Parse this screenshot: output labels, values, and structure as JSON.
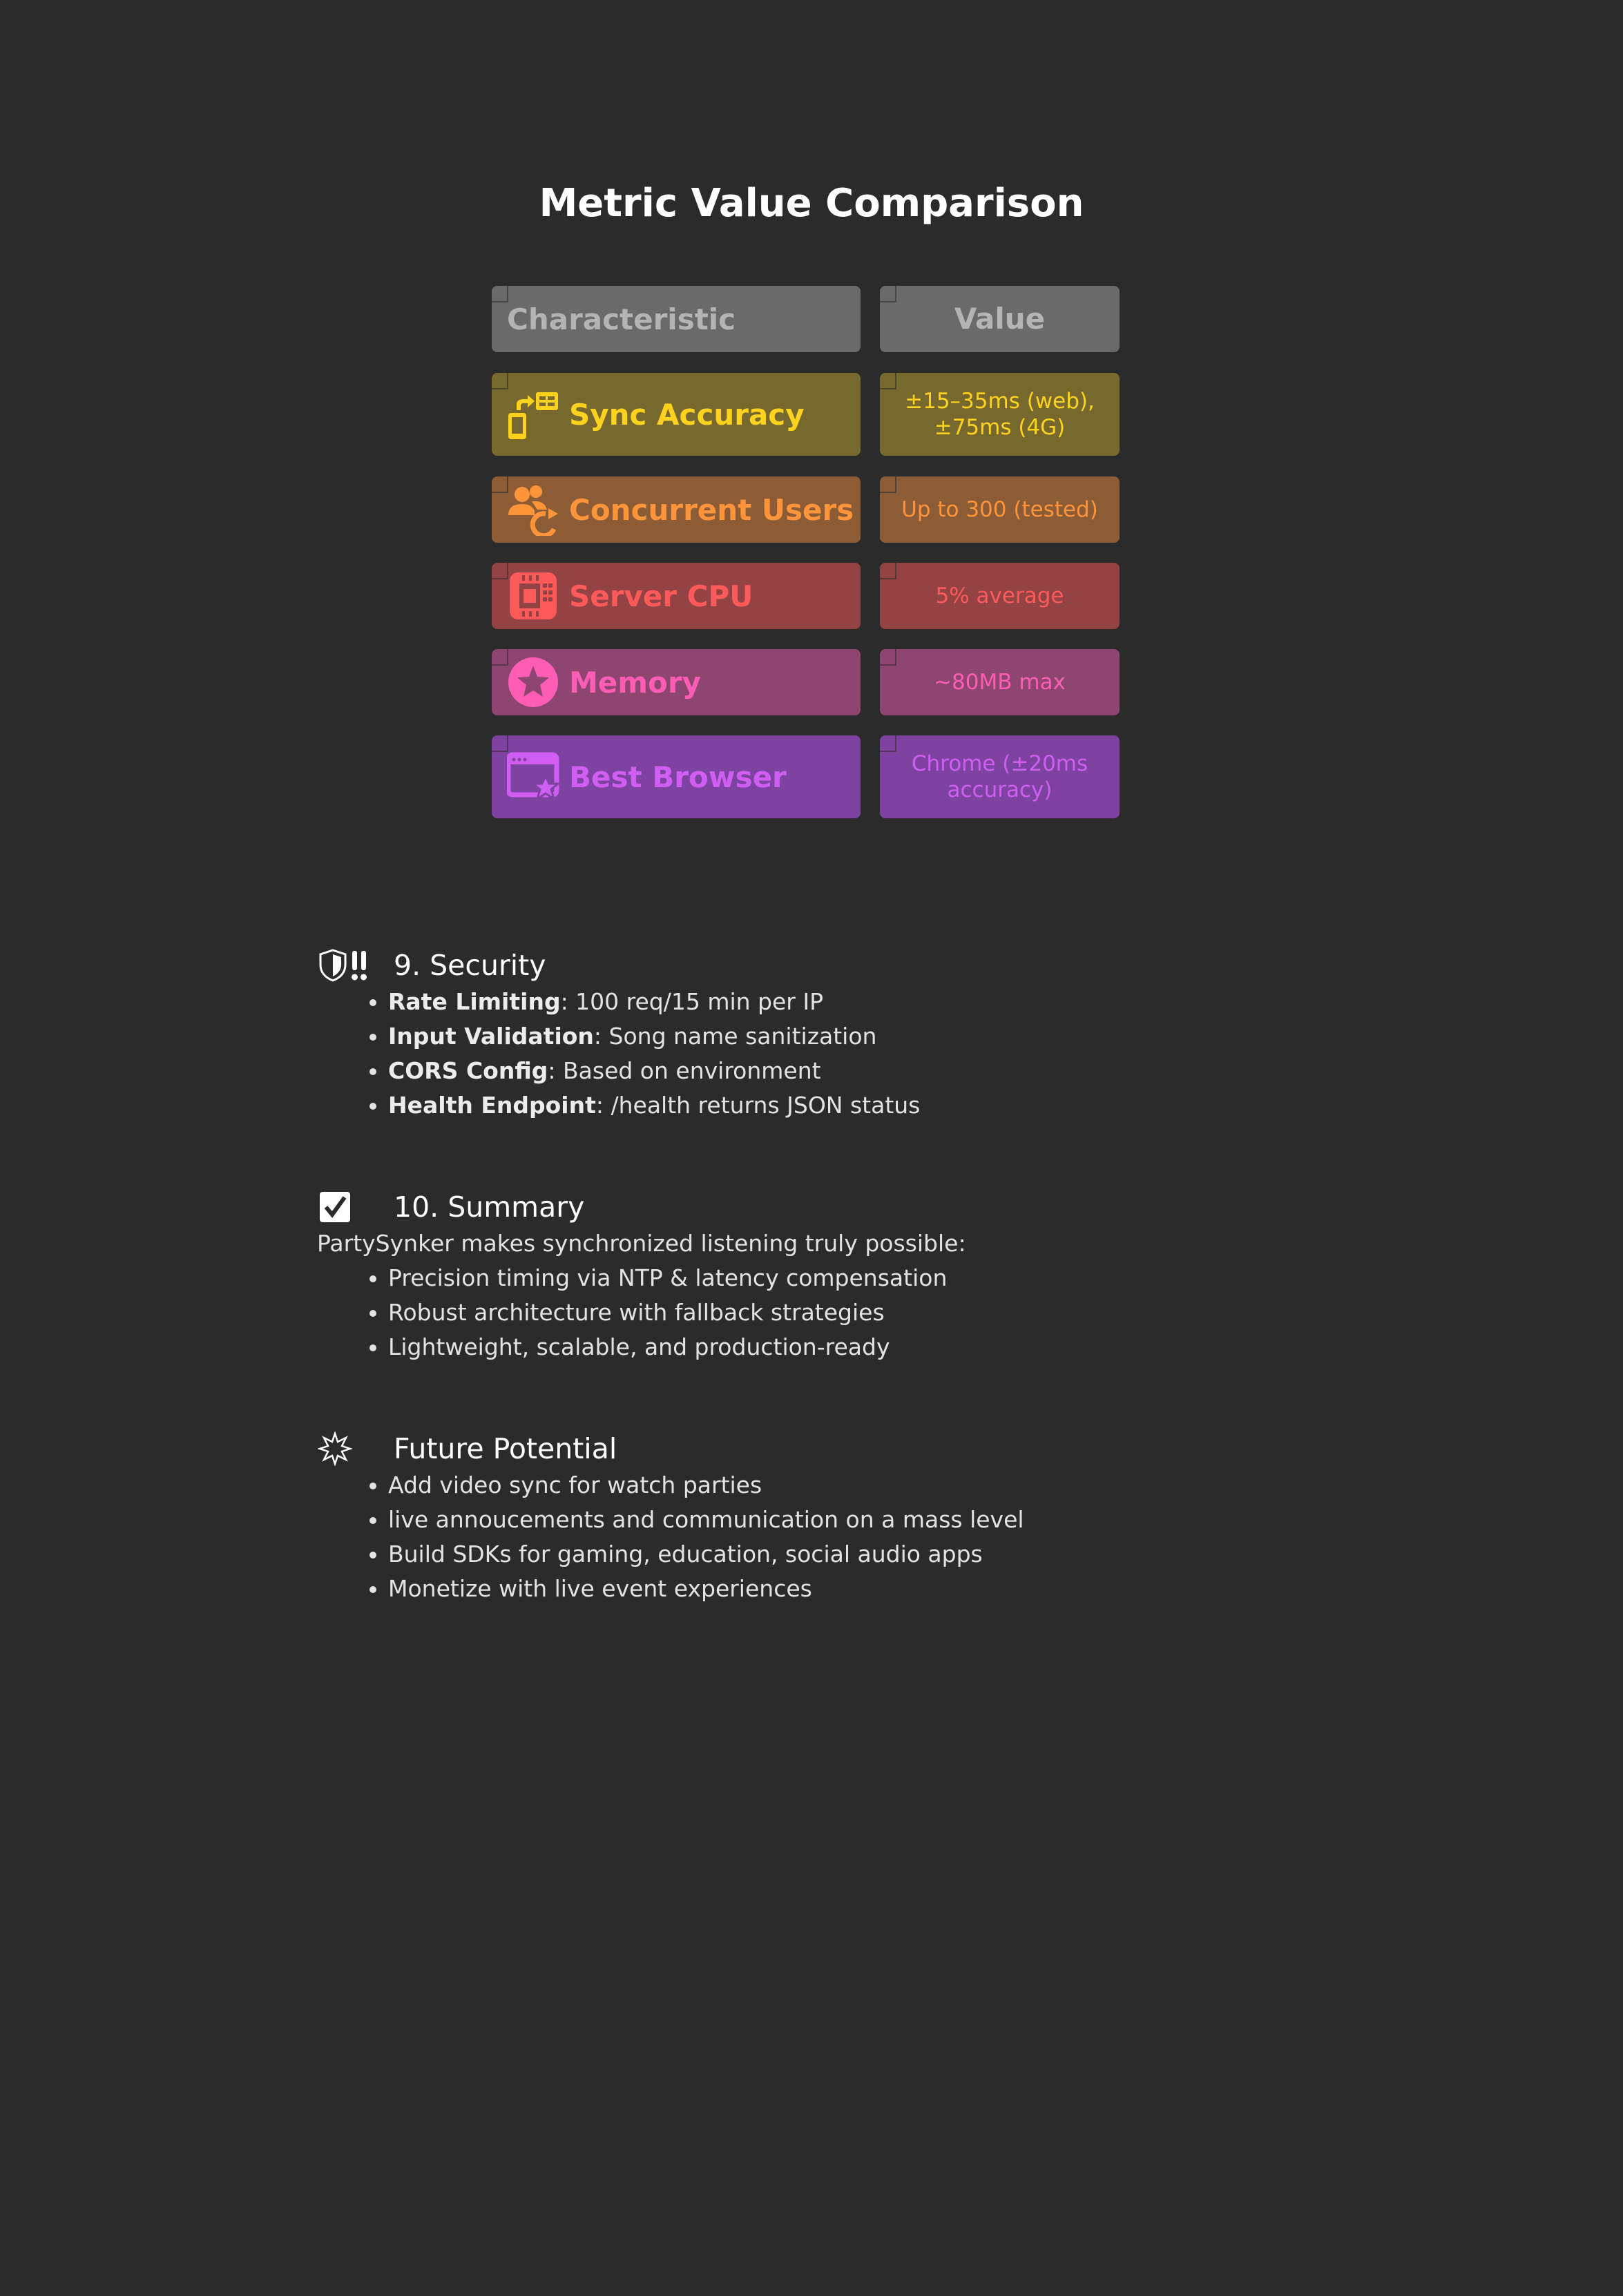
{
  "comparison_table": {
    "title": "Metric Value Comparison",
    "header": {
      "characteristic": "Characteristic",
      "value": "Value"
    },
    "rows": [
      {
        "characteristic": "Sync Accuracy",
        "value": "±15–35ms (web), ±75ms (4G)",
        "icon": "device-sync-icon",
        "color": "#ffd21f",
        "bg": "#77692e"
      },
      {
        "characteristic": "Concurrent Users",
        "value": "Up to 300 (tested)",
        "icon": "users-refresh-icon",
        "color": "#ff943b",
        "bg": "#8b5c35"
      },
      {
        "characteristic": "Server CPU",
        "value": "5% average",
        "icon": "cpu-chip-icon",
        "color": "#ff5a5a",
        "bg": "#934344"
      },
      {
        "characteristic": "Memory",
        "value": "~80MB max",
        "icon": "star-badge-icon",
        "color": "#ff5cb6",
        "bg": "#8e456f"
      },
      {
        "characteristic": "Best Browser",
        "value": "Chrome (±20ms accuracy)",
        "icon": "browser-star-icon",
        "color": "#d15ef2",
        "bg": "#7e43a0"
      }
    ]
  },
  "security": {
    "icon": "shield-alert-icon",
    "title": "9. Security",
    "items": [
      {
        "term": "Rate Limiting",
        "text": ": 100 req/15 min per IP"
      },
      {
        "term": "Input Validation",
        "text": ": Song name sanitization"
      },
      {
        "term": "CORS Config",
        "text": ": Based on environment"
      },
      {
        "term": "Health Endpoint",
        "text": ": /health returns JSON status"
      }
    ]
  },
  "summary": {
    "icon": "checkbox-checked-icon",
    "title": "10. Summary",
    "intro": "PartySynker makes synchronized listening truly possible:",
    "items": [
      "Precision timing via NTP & latency compensation",
      "Robust architecture with fallback strategies",
      "Lightweight, scalable, and production-ready"
    ]
  },
  "future": {
    "icon": "sparkle-burst-icon",
    "title": "Future Potential",
    "items": [
      "Add video sync for watch parties",
      "live annoucements and communication on a mass level",
      "Build SDKs for gaming, education, social audio apps",
      "Monetize with live event experiences"
    ]
  }
}
